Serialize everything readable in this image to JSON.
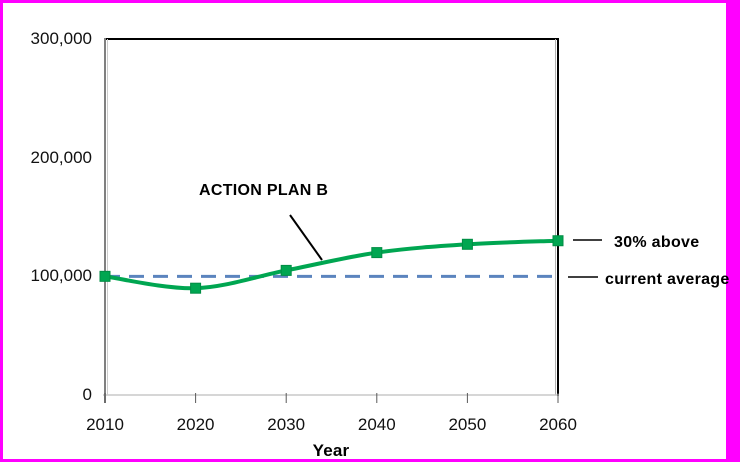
{
  "frame": {
    "border_color": "#FF00FF",
    "background": "#FFFFFF"
  },
  "colors": {
    "series_green": "#00A651",
    "series_green_edge": "#008C44",
    "reference_blue": "#5B84BE",
    "axis_left": "#808080",
    "axis_left_shadow": "#CCCCCC",
    "axis_bottom": "#C8C8C8",
    "plot_border": "#000000",
    "plot_border_shadow": "#B0B0B0",
    "tick_mark": "#595959",
    "annotation_line": "#000000",
    "text": "#111111"
  },
  "chart_data": {
    "type": "line",
    "x": [
      2010,
      2020,
      2030,
      2040,
      2050,
      2060
    ],
    "series": [
      {
        "name": "ACTION PLAN B",
        "values": [
          100000,
          90000,
          105000,
          120000,
          127000,
          130000
        ],
        "color": "#00A651",
        "marker": "square",
        "line_style": "solid",
        "smooth": true
      },
      {
        "name": "current average",
        "values": [
          100000,
          100000,
          100000,
          100000,
          100000,
          100000
        ],
        "color": "#5B84BE",
        "marker": "none",
        "line_style": "dashed",
        "smooth": false
      }
    ],
    "title": "",
    "xlabel": "Year",
    "ylabel": "",
    "xlim": [
      2010,
      2060
    ],
    "ylim": [
      0,
      300000
    ],
    "grid": false,
    "legend_position": "none",
    "yticks": {
      "values": [
        0,
        100000,
        200000,
        300000
      ],
      "labels": [
        "0",
        "100,000",
        "200,000",
        "300,000"
      ]
    },
    "xticks": {
      "values": [
        2010,
        2020,
        2030,
        2040,
        2050,
        2060
      ],
      "labels": [
        "2010",
        "2020",
        "2030",
        "2040",
        "2050",
        "2060"
      ]
    },
    "annotations": [
      {
        "text": "ACTION PLAN B",
        "points_to": "green series curve"
      },
      {
        "text": "30% above",
        "points_to": "green series endpoint at 2060"
      },
      {
        "text": "current average",
        "points_to": "dashed reference line at 100,000"
      }
    ]
  }
}
